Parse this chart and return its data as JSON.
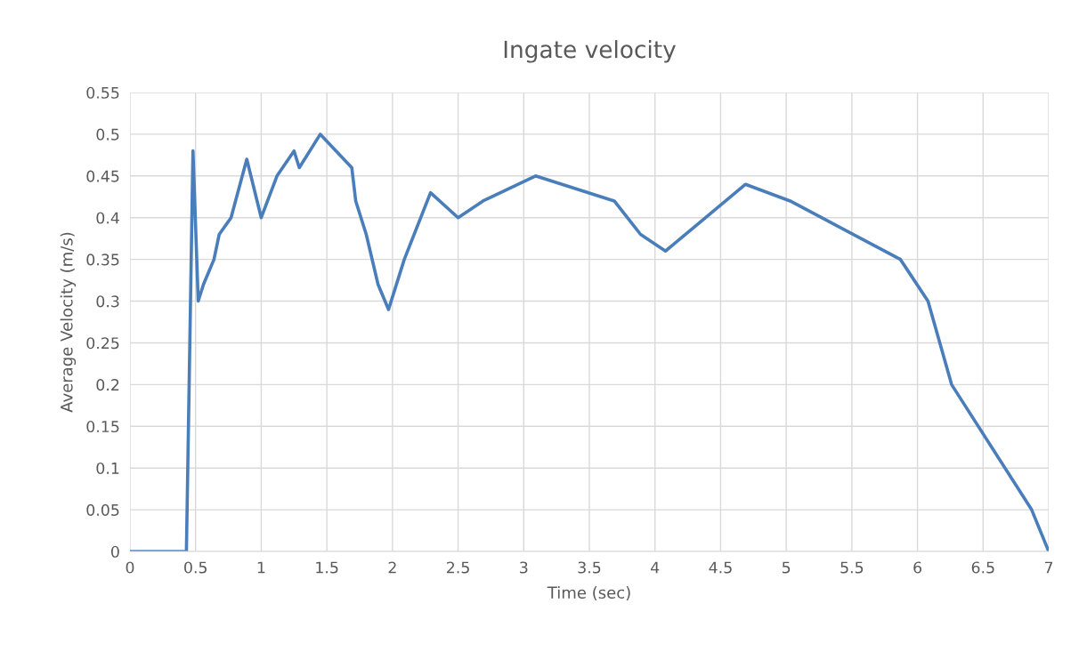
{
  "chart_data": {
    "type": "line",
    "title": "Ingate velocity",
    "xlabel": "Time (sec)",
    "ylabel": "Average Velocity (m/s)",
    "x": [
      0,
      0.43,
      0.48,
      0.52,
      0.56,
      0.64,
      0.68,
      0.77,
      0.89,
      1.0,
      1.12,
      1.25,
      1.29,
      1.45,
      1.69,
      1.72,
      1.8,
      1.89,
      1.97,
      2.09,
      2.29,
      2.5,
      2.69,
      3.09,
      3.69,
      3.89,
      4.08,
      4.69,
      5.03,
      5.87,
      6.08,
      6.26,
      6.87,
      7.0
    ],
    "series": [
      {
        "color": "#4a7ebb",
        "values": [
          0,
          0,
          0.48,
          0.3,
          0.32,
          0.35,
          0.38,
          0.4,
          0.47,
          0.4,
          0.45,
          0.48,
          0.46,
          0.5,
          0.46,
          0.42,
          0.38,
          0.32,
          0.29,
          0.35,
          0.43,
          0.4,
          0.42,
          0.45,
          0.42,
          0.38,
          0.36,
          0.44,
          0.42,
          0.35,
          0.3,
          0.2,
          0.05,
          0
        ]
      }
    ],
    "xlim": [
      0,
      7
    ],
    "xticks": [
      0,
      0.5,
      1,
      1.5,
      2,
      2.5,
      3,
      3.5,
      4,
      4.5,
      5,
      5.5,
      6,
      6.5,
      7
    ],
    "ylim": [
      0,
      0.55
    ],
    "yticks": [
      0,
      0.05,
      0.1,
      0.15,
      0.2,
      0.25,
      0.3,
      0.35,
      0.4,
      0.45,
      0.5,
      0.55
    ],
    "grid": true,
    "legend": false,
    "marker": "none",
    "line_style": "solid"
  }
}
